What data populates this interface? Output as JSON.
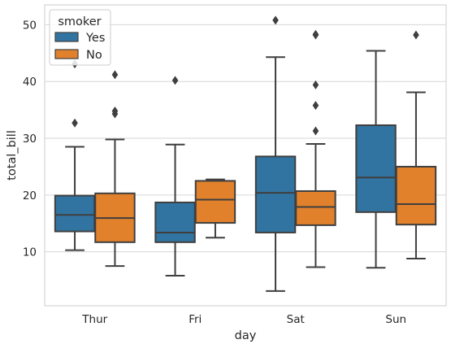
{
  "chart_data": {
    "type": "boxplot",
    "xlabel": "day",
    "ylabel": "total_bill",
    "categories": [
      "Thur",
      "Fri",
      "Sat",
      "Sun"
    ],
    "ylim": [
      0.5,
      53.5
    ],
    "yticks": [
      10,
      20,
      30,
      40,
      50
    ],
    "grid": "horizontal",
    "legend": {
      "title": "smoker",
      "placement": "top-left"
    },
    "series": [
      {
        "name": "Yes",
        "color": "#3274a1",
        "boxes": [
          {
            "category": "Thur",
            "whisker_low": 10.3,
            "q1": 13.6,
            "median": 16.5,
            "q3": 19.9,
            "whisker_high": 28.5,
            "outliers": [
              32.7,
              43.1
            ]
          },
          {
            "category": "Fri",
            "whisker_low": 5.8,
            "q1": 11.7,
            "median": 13.4,
            "q3": 18.7,
            "whisker_high": 28.9,
            "outliers": [
              40.2
            ]
          },
          {
            "category": "Sat",
            "whisker_low": 3.1,
            "q1": 13.4,
            "median": 20.4,
            "q3": 26.8,
            "whisker_high": 44.3,
            "outliers": [
              50.8
            ]
          },
          {
            "category": "Sun",
            "whisker_low": 7.2,
            "q1": 17.0,
            "median": 23.1,
            "q3": 32.3,
            "whisker_high": 45.4,
            "outliers": []
          }
        ]
      },
      {
        "name": "No",
        "color": "#e1812c",
        "boxes": [
          {
            "category": "Thur",
            "whisker_low": 7.5,
            "q1": 11.7,
            "median": 15.95,
            "q3": 20.3,
            "whisker_high": 29.8,
            "outliers": [
              34.3,
              34.8,
              41.2
            ]
          },
          {
            "category": "Fri",
            "whisker_low": 12.5,
            "q1": 15.1,
            "median": 19.2,
            "q3": 22.5,
            "whisker_high": 22.75,
            "outliers": []
          },
          {
            "category": "Sat",
            "whisker_low": 7.3,
            "q1": 14.7,
            "median": 17.9,
            "q3": 20.7,
            "whisker_high": 29.0,
            "outliers": [
              31.3,
              35.8,
              39.4,
              48.2,
              48.3
            ]
          },
          {
            "category": "Sun",
            "whisker_low": 8.8,
            "q1": 14.8,
            "median": 18.4,
            "q3": 25.0,
            "whisker_high": 38.1,
            "outliers": [
              48.2
            ]
          }
        ]
      }
    ]
  }
}
